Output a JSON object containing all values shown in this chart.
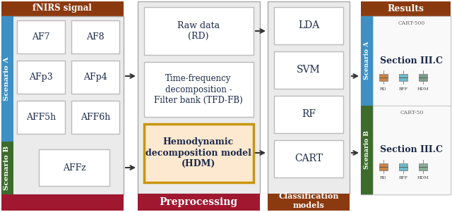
{
  "brown": "#8B3A0F",
  "dark_red": "#A01830",
  "blue": "#3D8FC4",
  "green": "#3D6B2C",
  "light_gray": "#EBEBEB",
  "light_orange": "#FDE8D0",
  "gold": "#C8960C",
  "navy": "#1B2A4A",
  "white": "#FFFFFF",
  "mid_gray": "#AAAAAA",
  "box_white": "#FFFFFF",
  "fnirs_label": "fNIRS signal",
  "scenario_a": "Scenario A",
  "scenario_b": "Scenario B",
  "channels_a": [
    [
      "AF7",
      "AF8"
    ],
    [
      "AFp3",
      "AFp4"
    ],
    [
      "AFF5h",
      "AFF6h"
    ]
  ],
  "channels_b": "AFFz",
  "preproc_label": "Preprocessing",
  "classif_label": "Classification\nmodels",
  "results_label": "Results",
  "section_label": "Section III.C",
  "cart500": "CART-500",
  "cart50": "CART-50",
  "rd_color": "#C8844A",
  "bff_color": "#6DB8C8",
  "hdm_color_a": "#7A9E8A",
  "hdm_color_b": "#8AAA96"
}
